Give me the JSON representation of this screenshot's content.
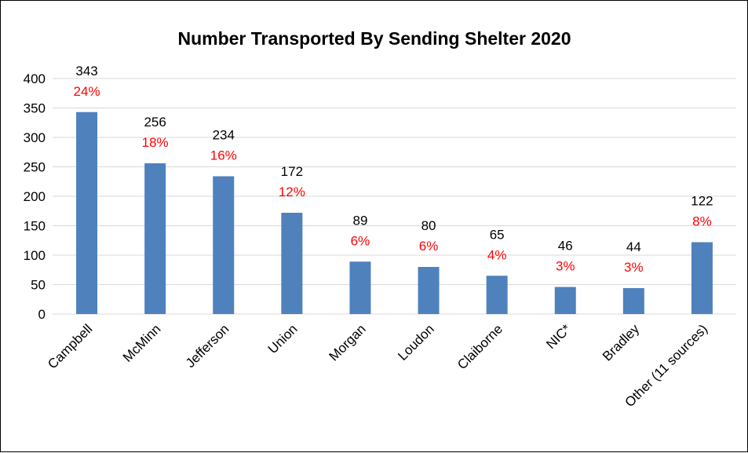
{
  "chart_data": {
    "type": "bar",
    "title": "Number Transported By Sending Shelter 2020",
    "xlabel": "",
    "ylabel": "",
    "categories": [
      "Campbell",
      "McMinn",
      "Jefferson",
      "Union",
      "Morgan",
      "Loudon",
      "Claiborne",
      "NIC*",
      "Bradley",
      "Other (11 sources)"
    ],
    "values": [
      343,
      256,
      234,
      172,
      89,
      80,
      65,
      46,
      44,
      122
    ],
    "value_labels": [
      "343",
      "256",
      "234",
      "172",
      "89",
      "80",
      "65",
      "46",
      "44",
      "122"
    ],
    "percent_labels": [
      "24%",
      "18%",
      "16%",
      "12%",
      "6%",
      "6%",
      "4%",
      "3%",
      "3%",
      "8%"
    ],
    "ylim": [
      0,
      400
    ],
    "yticks": [
      0,
      50,
      100,
      150,
      200,
      250,
      300,
      350,
      400
    ],
    "ytick_labels": [
      "0",
      "50",
      "100",
      "150",
      "200",
      "250",
      "300",
      "350",
      "400"
    ],
    "grid": true,
    "legend": "none",
    "colors": {
      "bar": "#4f81bd",
      "percent": "#ff0000",
      "grid": "#d9d9d9"
    }
  }
}
